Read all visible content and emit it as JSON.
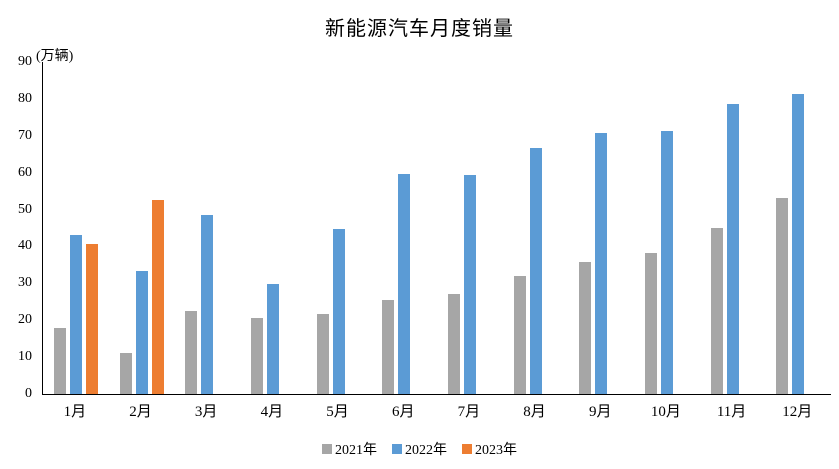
{
  "chart_data": {
    "type": "bar",
    "title": "新能源汽车月度销量",
    "unit_label": "(万辆)",
    "categories": [
      "1月",
      "2月",
      "3月",
      "4月",
      "5月",
      "6月",
      "7月",
      "8月",
      "9月",
      "10月",
      "11月",
      "12月"
    ],
    "series": [
      {
        "name": "2021年",
        "color": "#A6A6A6",
        "values": [
          17.9,
          11.0,
          22.6,
          20.6,
          21.7,
          25.6,
          27.1,
          32.1,
          35.7,
          38.3,
          45.0,
          53.1
        ]
      },
      {
        "name": "2022年",
        "color": "#5B9BD5",
        "values": [
          43.1,
          33.4,
          48.4,
          29.9,
          44.7,
          59.6,
          59.3,
          66.6,
          70.8,
          71.4,
          78.6,
          81.4
        ]
      },
      {
        "name": "2023年",
        "color": "#ED7D31",
        "values": [
          40.8,
          52.5,
          null,
          null,
          null,
          null,
          null,
          null,
          null,
          null,
          null,
          null
        ]
      }
    ],
    "ylim": [
      0,
      90
    ],
    "ytick_interval": 10,
    "grid": false,
    "legend_position": "bottom",
    "axis_color": "#000000",
    "background_color": "#ffffff"
  }
}
